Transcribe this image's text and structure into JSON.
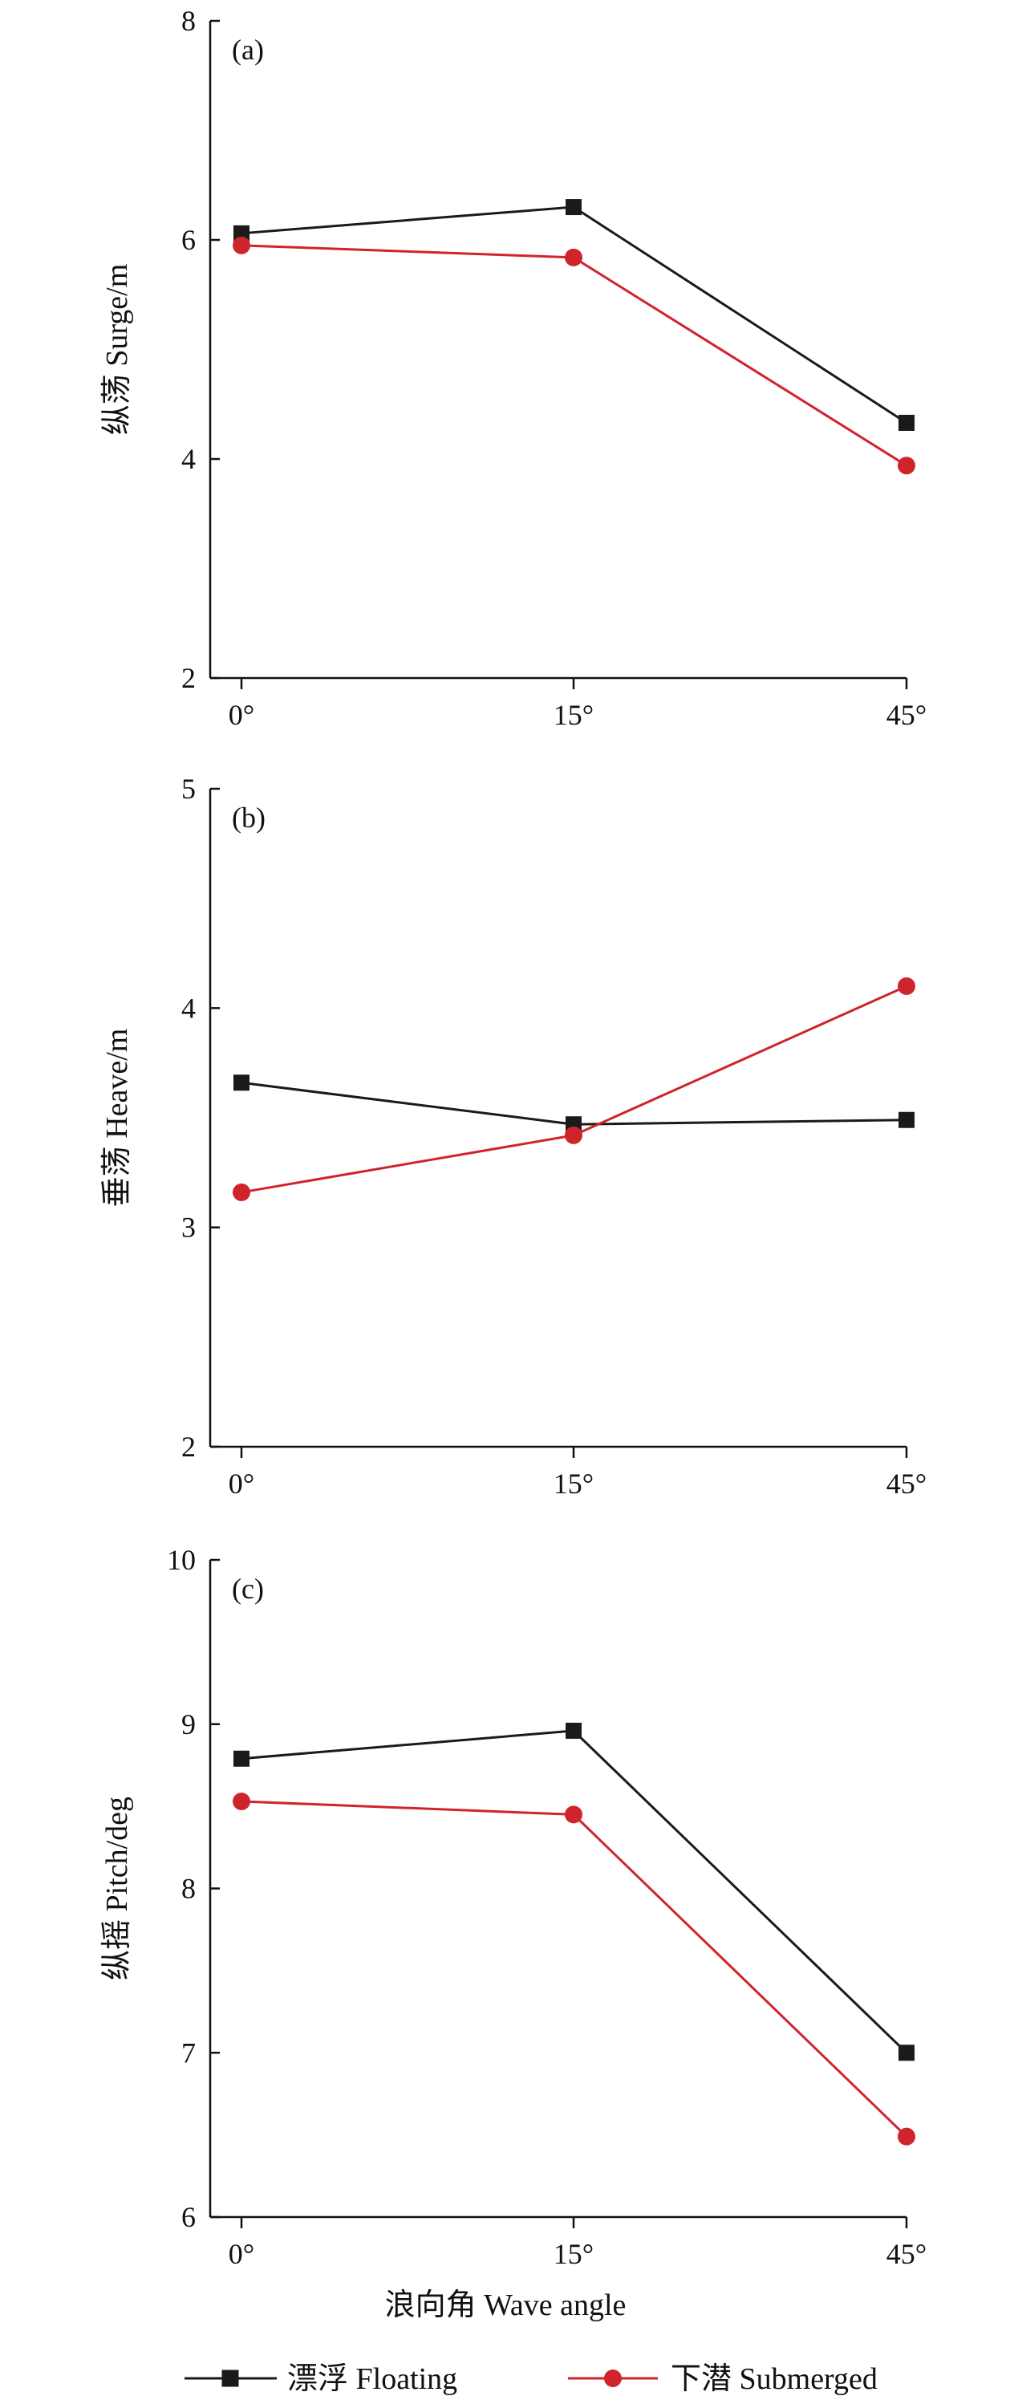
{
  "colors": {
    "floating": "#1a1a1a",
    "submerged": "#d0242c",
    "axis": "#111111"
  },
  "legend": {
    "floating": "漂浮 Floating",
    "submerged": "下潜 Submerged"
  },
  "x_axis": {
    "title": "浪向角 Wave angle"
  },
  "chart_data": [
    {
      "type": "line",
      "tag": "(a)",
      "ylabel": "纵荡 Surge/m",
      "categories": [
        "0°",
        "15°",
        "45°"
      ],
      "ylim": [
        2,
        8
      ],
      "yticks": [
        "2",
        "4",
        "6",
        "8"
      ],
      "series": [
        {
          "name": "漂浮 Floating",
          "key": "floating",
          "values": [
            6.06,
            6.3,
            4.33
          ]
        },
        {
          "name": "下潜 Submerged",
          "key": "submerged",
          "values": [
            5.95,
            5.84,
            3.94
          ]
        }
      ]
    },
    {
      "type": "line",
      "tag": "(b)",
      "ylabel": "垂荡 Heave/m",
      "categories": [
        "0°",
        "15°",
        "45°"
      ],
      "ylim": [
        2,
        5
      ],
      "yticks": [
        "2",
        "3",
        "4",
        "5"
      ],
      "series": [
        {
          "name": "漂浮 Floating",
          "key": "floating",
          "values": [
            3.66,
            3.47,
            3.49
          ]
        },
        {
          "name": "下潜 Submerged",
          "key": "submerged",
          "values": [
            3.16,
            3.42,
            4.1
          ]
        }
      ]
    },
    {
      "type": "line",
      "tag": "(c)",
      "ylabel": "纵摇 Pitch/deg",
      "categories": [
        "0°",
        "15°",
        "45°"
      ],
      "ylim": [
        6,
        10
      ],
      "yticks": [
        "6",
        "7",
        "8",
        "9",
        "10"
      ],
      "series": [
        {
          "name": "漂浮 Floating",
          "key": "floating",
          "values": [
            8.79,
            8.96,
            7.0
          ]
        },
        {
          "name": "下潜 Submerged",
          "key": "submerged",
          "values": [
            8.53,
            8.45,
            6.49
          ]
        }
      ]
    }
  ]
}
